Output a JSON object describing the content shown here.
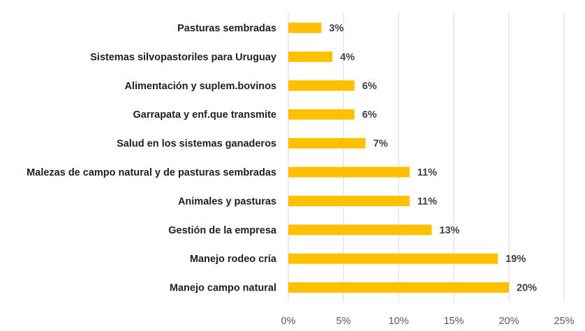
{
  "chart_data": {
    "type": "bar",
    "orientation": "horizontal",
    "title": "",
    "xlabel": "",
    "ylabel": "",
    "categories": [
      "Pasturas sembradas",
      "Sistemas silvopastoriles para Uruguay",
      "Alimentación y suplem.bovinos",
      "Garrapata y enf.que transmite",
      "Salud en los sistemas ganaderos",
      "Malezas de campo natural y de pasturas sembradas",
      "Animales y pasturas",
      "Gestión de la empresa",
      "Manejo rodeo cría",
      "Manejo campo natural"
    ],
    "values": [
      3,
      4,
      6,
      6,
      7,
      11,
      11,
      13,
      19,
      20
    ],
    "value_labels": [
      "3%",
      "4%",
      "6%",
      "6%",
      "7%",
      "11%",
      "11%",
      "13%",
      "19%",
      "20%"
    ],
    "xlim": [
      0,
      25
    ],
    "x_ticks": [
      "0%",
      "5%",
      "10%",
      "15%",
      "20%",
      "25%"
    ],
    "grid": "vertical",
    "legend": "none",
    "colors": {
      "bar": "#FFC000",
      "grid": "#d9d9d9"
    }
  }
}
